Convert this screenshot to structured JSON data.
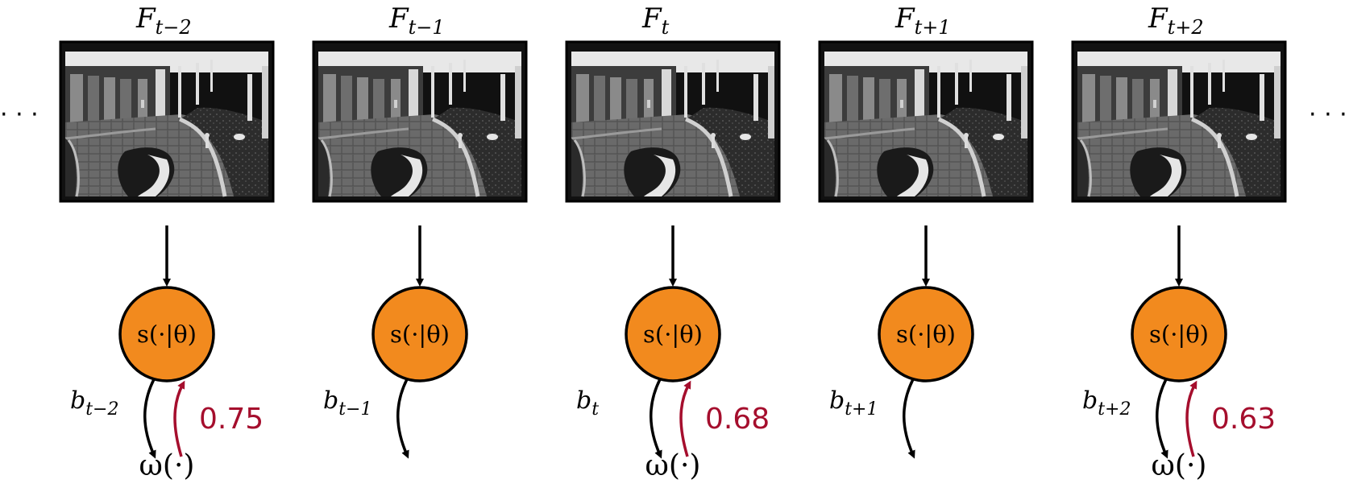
{
  "ellipsis": "· · ·",
  "colors": {
    "node_fill": "#f28a1e",
    "score_arrow": "#a50e2d",
    "frame_sky": "#e8e8e8",
    "frame_ground": "#3a3a3a"
  },
  "node_label": "s(·|θ)",
  "omega_label": "ω(·)",
  "frames": [
    {
      "title": "F",
      "title_sub": "t−2",
      "b_label": "b",
      "b_sub": "t−2",
      "has_omega": true,
      "score": "0.75"
    },
    {
      "title": "F",
      "title_sub": "t−1",
      "b_label": "b",
      "b_sub": "t−1",
      "has_omega": false,
      "score": ""
    },
    {
      "title": "F",
      "title_sub": "t",
      "b_label": "b",
      "b_sub": "t",
      "has_omega": true,
      "score": "0.68"
    },
    {
      "title": "F",
      "title_sub": "t+1",
      "b_label": "b",
      "b_sub": "t+1",
      "has_omega": false,
      "score": ""
    },
    {
      "title": "F",
      "title_sub": "t+2",
      "b_label": "b",
      "b_sub": "t+2",
      "has_omega": true,
      "score": "0.63"
    }
  ]
}
